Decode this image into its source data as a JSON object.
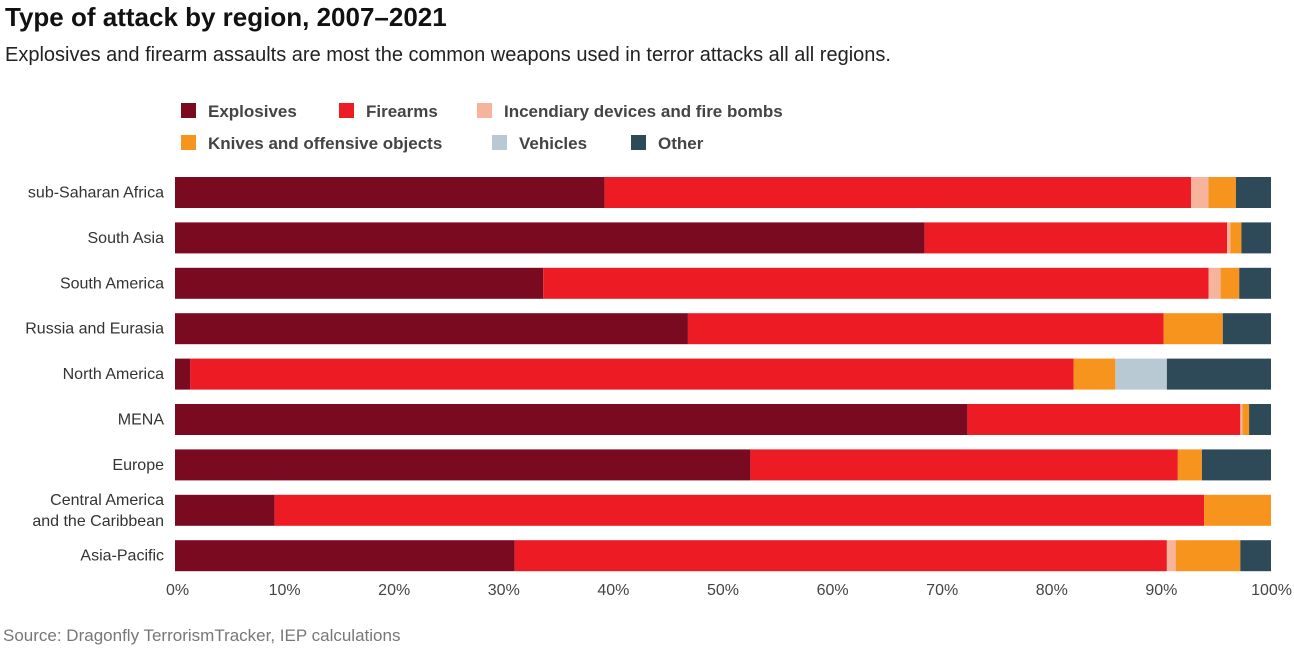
{
  "title": "Type of attack by region, 2007–2021",
  "subtitle": "Explosives and firearm assaults are most the common weapons used in terror attacks all all regions.",
  "source": "Source: Dragonfly TerrorismTracker, IEP calculations",
  "chart_data": {
    "type": "bar",
    "orientation": "horizontal",
    "stacked": true,
    "categories": [
      "sub-Saharan Africa",
      "South Asia",
      "South America",
      "Russia and Eurasia",
      "North America",
      "MENA",
      "Europe",
      "Central America and the Caribbean",
      "Asia-Pacific"
    ],
    "category_lines": [
      [
        "sub-Saharan Africa"
      ],
      [
        "South Asia"
      ],
      [
        "South America"
      ],
      [
        "Russia and Eurasia"
      ],
      [
        "North America"
      ],
      [
        "MENA"
      ],
      [
        "Europe"
      ],
      [
        "Central America",
        "and the Caribbean"
      ],
      [
        "Asia-Pacific"
      ]
    ],
    "series": [
      {
        "name": "Explosives",
        "color": "#7a0a20",
        "values": [
          39.2,
          68.4,
          33.6,
          46.8,
          1.4,
          72.3,
          52.5,
          9.1,
          31.0
        ]
      },
      {
        "name": "Firearms",
        "color": "#ed1c24",
        "values": [
          53.5,
          27.6,
          60.7,
          43.4,
          80.6,
          24.9,
          39.0,
          84.8,
          59.5
        ]
      },
      {
        "name": "Incendiary devices and fire bombs",
        "color": "#f7b49c",
        "values": [
          1.6,
          0.3,
          1.1,
          0.0,
          0.0,
          0.2,
          0.0,
          0.0,
          0.8
        ]
      },
      {
        "name": "Knives and offensive objects",
        "color": "#f7941d",
        "values": [
          2.5,
          1.0,
          1.7,
          5.4,
          3.8,
          0.6,
          2.2,
          6.1,
          5.9
        ]
      },
      {
        "name": "Vehicles",
        "color": "#b9c9d3",
        "values": [
          0.0,
          0.0,
          0.0,
          0.0,
          4.7,
          0.0,
          0.0,
          0.0,
          0.0
        ]
      },
      {
        "name": "Other",
        "color": "#2e4a58",
        "values": [
          3.2,
          2.7,
          2.9,
          4.4,
          9.5,
          2.0,
          6.3,
          0.0,
          2.8
        ]
      }
    ],
    "xlim": [
      0,
      100
    ],
    "x_ticks": [
      "0%",
      "10%",
      "20%",
      "30%",
      "40%",
      "50%",
      "60%",
      "70%",
      "80%",
      "90%",
      "100%"
    ],
    "legend_position": "top",
    "grid": false
  }
}
